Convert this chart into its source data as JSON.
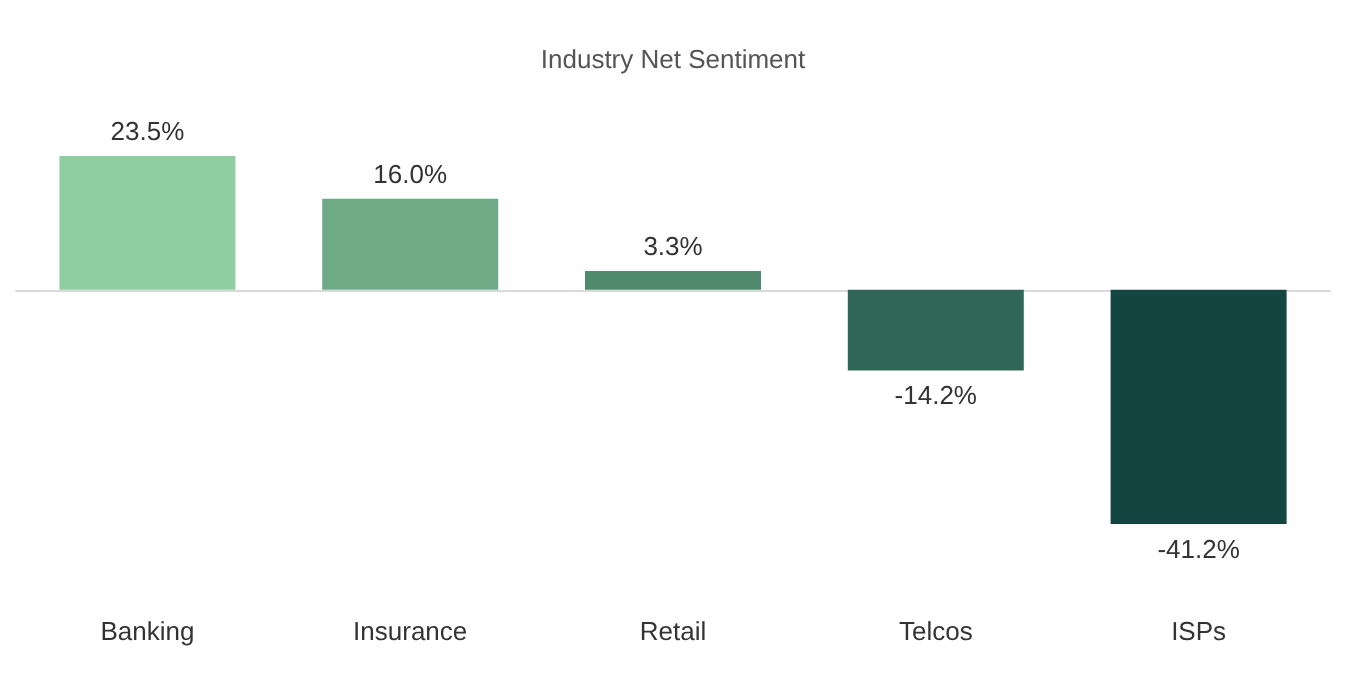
{
  "chart_data": {
    "type": "bar",
    "title": "Industry Net Sentiment",
    "categories": [
      "Banking",
      "Insurance",
      "Retail",
      "Telcos",
      "ISPs"
    ],
    "values": [
      23.5,
      16.0,
      3.3,
      -14.2,
      -41.2
    ],
    "colors": [
      "#8fcea0",
      "#70ab88",
      "#4f8a6d",
      "#306656",
      "#134640"
    ],
    "value_labels": [
      "23.5%",
      "16.0%",
      "3.3%",
      "-14.2%",
      "-41.2%"
    ]
  }
}
